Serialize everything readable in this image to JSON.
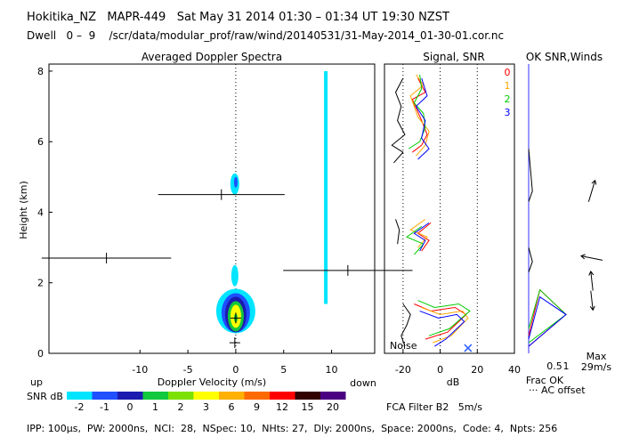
{
  "header": {
    "line1": "Hokitika_NZ   MAPR-449   Sat May 31 2014 01:30 – 01:34 UT 19:30 NZST",
    "line2": "Dwell   0 –  9    /scr/data/modular_prof/raw/wind/20140531/31-May-2014_01-30-01.cor.nc"
  },
  "footer": {
    "params": "IPP: 100μs,  PW: 2000ns,  NCI:  28,  NSpec: 10,  NHts: 27,  Dly: 2000ns,  Space: 2000ns,  Code: 4,  Npts: 256",
    "fca": "FCA Filter B2   5m/s"
  },
  "colorbar": {
    "label": "SNR dB",
    "ticks": [
      "-2",
      "-1",
      "0",
      "1",
      "2",
      "3",
      "6",
      "9",
      "12",
      "15",
      "20"
    ],
    "colors": [
      "#00e5ff",
      "#1f4fff",
      "#1b1bb0",
      "#12c83c",
      "#7ce000",
      "#ffff00",
      "#ffb000",
      "#ff6a00",
      "#ff0000",
      "#330000",
      "#4b0082"
    ]
  },
  "colors": {
    "beam0": "#ff0000",
    "beam1": "#ffa500",
    "beam2": "#00cc00",
    "beam3": "#0000ff"
  },
  "chart_data": [
    {
      "type": "heatmap",
      "title": "Averaged Doppler Spectra",
      "xlabel": "Doppler Velocity (m/s)",
      "ylabel": "Height (km)",
      "xlim": [
        -19.5,
        14.5
      ],
      "ylim": [
        0,
        8.2
      ],
      "xticks": [
        -10,
        -5,
        0,
        5,
        10
      ],
      "yticks": [
        0,
        2,
        4,
        6,
        8
      ],
      "annotations": {
        "down": "down",
        "up": "up"
      },
      "moments": [
        {
          "height": 4.5,
          "velocity": -1.5,
          "spread": 13.2
        },
        {
          "height": 2.7,
          "velocity": -13.5,
          "spread": 13.5
        },
        {
          "height": 2.35,
          "velocity": 11.7,
          "spread": 13.5
        },
        {
          "height": 1.0,
          "velocity": 0.0,
          "spread": 0.3
        },
        {
          "height": 0.3,
          "velocity": -0.1,
          "spread": 0.9
        }
      ]
    },
    {
      "type": "line",
      "title": "Signal, SNR",
      "xlabel": "dB",
      "xlim": [
        -30,
        40
      ],
      "ylim": [
        0,
        8.2
      ],
      "xticks": [
        -20,
        0,
        20,
        40
      ],
      "noise_label": "Noise",
      "legend": [
        "0",
        "1",
        "2",
        "3"
      ],
      "series": [
        {
          "name": "0",
          "points": [
            [
              -14,
              1.4
            ],
            [
              -5,
              1.2
            ],
            [
              8,
              1.3
            ],
            [
              14,
              1.1
            ],
            [
              4,
              0.6
            ],
            [
              -8,
              0.4
            ],
            [
              -5,
              3.7
            ],
            [
              -12,
              3.4
            ],
            [
              -6,
              3.2
            ],
            [
              -10,
              2.9
            ],
            [
              -15,
              5.7
            ],
            [
              -10,
              5.9
            ],
            [
              -7,
              6.2
            ],
            [
              -10,
              6.6
            ],
            [
              -15,
              7.2
            ],
            [
              -8,
              7.4
            ],
            [
              -12,
              7.8
            ]
          ]
        },
        {
          "name": "1",
          "points": [
            [
              -10,
              1.3
            ],
            [
              0,
              1.1
            ],
            [
              12,
              1.2
            ],
            [
              15,
              1.0
            ],
            [
              6,
              0.5
            ],
            [
              -4,
              0.3
            ],
            [
              -8,
              3.8
            ],
            [
              -16,
              3.5
            ],
            [
              -7,
              3.3
            ],
            [
              -12,
              3.0
            ],
            [
              -13,
              5.6
            ],
            [
              -8,
              5.9
            ],
            [
              -6,
              6.3
            ],
            [
              -12,
              6.7
            ],
            [
              -16,
              7.3
            ],
            [
              -9,
              7.6
            ],
            [
              -13,
              7.9
            ]
          ]
        },
        {
          "name": "2",
          "points": [
            [
              -12,
              1.5
            ],
            [
              -3,
              1.3
            ],
            [
              10,
              1.4
            ],
            [
              16,
              1.2
            ],
            [
              5,
              0.7
            ],
            [
              -6,
              0.5
            ],
            [
              -10,
              3.6
            ],
            [
              -18,
              3.3
            ],
            [
              -9,
              3.1
            ],
            [
              -14,
              2.8
            ],
            [
              -17,
              5.8
            ],
            [
              -11,
              6.0
            ],
            [
              -8,
              6.4
            ],
            [
              -9,
              6.8
            ],
            [
              -14,
              7.1
            ],
            [
              -10,
              7.5
            ],
            [
              -11,
              7.9
            ]
          ]
        },
        {
          "name": "3",
          "points": [
            [
              -11,
              1.2
            ],
            [
              -1,
              1.0
            ],
            [
              9,
              1.1
            ],
            [
              13,
              0.9
            ],
            [
              3,
              0.4
            ],
            [
              -3,
              0.2
            ],
            [
              -6,
              3.7
            ],
            [
              -14,
              3.4
            ],
            [
              -8,
              3.2
            ],
            [
              -11,
              2.9
            ],
            [
              -12,
              5.5
            ],
            [
              -6,
              5.8
            ],
            [
              -10,
              6.1
            ],
            [
              -8,
              6.6
            ],
            [
              -13,
              7.0
            ],
            [
              -7,
              7.3
            ],
            [
              -10,
              7.8
            ]
          ]
        },
        {
          "name": "Noise",
          "points": [
            [
              -20,
              1.4
            ],
            [
              -16,
              1.1
            ],
            [
              -18,
              0.8
            ],
            [
              -21,
              0.5
            ],
            [
              -19,
              0.2
            ],
            [
              -24,
              3.8
            ],
            [
              -22,
              3.5
            ],
            [
              -23,
              3.1
            ],
            [
              -25,
              5.4
            ],
            [
              -20,
              5.7
            ],
            [
              -26,
              5.9
            ],
            [
              -19,
              6.2
            ],
            [
              -23,
              6.6
            ],
            [
              -21,
              7.0
            ],
            [
              -24,
              7.4
            ],
            [
              -20,
              7.8
            ]
          ]
        }
      ]
    },
    {
      "type": "line",
      "title": "OK SNR,Winds",
      "xlabel": "Frac OK",
      "xlim": [
        0,
        1
      ],
      "xticks": [
        0.5,
        1
      ],
      "xtick_labels": [
        "0.5",
        "1"
      ],
      "ylim": [
        0,
        8.2
      ],
      "offset_label": "··· AC offset",
      "max_label": [
        "Max",
        "29m/s"
      ],
      "series": [
        {
          "name": "0",
          "points": [
            [
              0,
              0.5
            ],
            [
              0.3,
              1.8
            ],
            [
              1.0,
              1.1
            ],
            [
              0.0,
              0.2
            ]
          ]
        },
        {
          "name": "2",
          "points": [
            [
              0,
              0.7
            ],
            [
              0.3,
              1.8
            ],
            [
              1.0,
              1.1
            ],
            [
              0.0,
              0.3
            ]
          ]
        },
        {
          "name": "3",
          "points": [
            [
              0,
              0.4
            ],
            [
              0.3,
              1.6
            ],
            [
              1.0,
              1.1
            ],
            [
              0.0,
              0.2
            ]
          ]
        }
      ],
      "winds": [
        {
          "height": 4.6,
          "u": 0.3,
          "v": 1
        },
        {
          "height": 2.7,
          "u": -1,
          "v": 0.2
        },
        {
          "height": 2.05,
          "u": -0.1,
          "v": 0.9
        },
        {
          "height": 1.5,
          "u": 0.1,
          "v": -0.9
        }
      ]
    }
  ]
}
